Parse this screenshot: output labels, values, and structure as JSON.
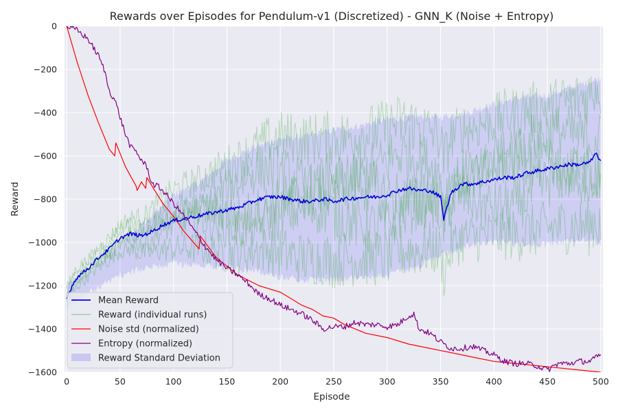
{
  "chart_data": {
    "type": "line",
    "title": "Rewards over Episodes for Pendulum-v1 (Discretized) - GNN_K (Noise + Entropy)",
    "xlabel": "Episode",
    "ylabel": "Reward",
    "xlim": [
      -2,
      502
    ],
    "ylim": [
      -1600,
      0
    ],
    "xticks": [
      0,
      50,
      100,
      150,
      200,
      250,
      300,
      350,
      400,
      450,
      500
    ],
    "xtick_labels": [
      "0",
      "50",
      "100",
      "150",
      "200",
      "250",
      "300",
      "350",
      "400",
      "450",
      "500"
    ],
    "yticks": [
      0,
      -200,
      -400,
      -600,
      -800,
      -1000,
      -1200,
      -1400,
      -1600
    ],
    "ytick_labels": [
      "0",
      "−200",
      "−400",
      "−600",
      "−800",
      "−1000",
      "−1200",
      "−1400",
      "−1600"
    ],
    "grid": true,
    "legend_position": "bottom-left",
    "colors": {
      "background": "#eaeaf2",
      "grid": "#ffffff",
      "mean": "#0000dd",
      "runs": "#2ca02c",
      "noise": "#ff0000",
      "entropy": "#800080",
      "std_band": "#6f6ff5"
    },
    "legend": [
      {
        "label": "Mean Reward",
        "kind": "line",
        "color": "#0000dd"
      },
      {
        "label": "Reward (individual runs)",
        "kind": "line",
        "color": "#8fc98f"
      },
      {
        "label": "Noise std (normalized)",
        "kind": "line",
        "color": "#ff0000"
      },
      {
        "label": "Entropy (normalized)",
        "kind": "line",
        "color": "#800080"
      },
      {
        "label": "Reward Standard Deviation",
        "kind": "patch",
        "color": "#c8c8f0"
      }
    ],
    "series": [
      {
        "name": "Mean Reward",
        "x": [
          0,
          5,
          10,
          20,
          30,
          40,
          50,
          60,
          70,
          80,
          90,
          100,
          110,
          120,
          130,
          140,
          150,
          160,
          170,
          180,
          190,
          200,
          210,
          220,
          230,
          240,
          250,
          260,
          270,
          280,
          290,
          300,
          310,
          320,
          330,
          340,
          350,
          353,
          360,
          370,
          380,
          390,
          400,
          410,
          420,
          430,
          440,
          450,
          460,
          470,
          480,
          490,
          495,
          500
        ],
        "y": [
          -1260,
          -1200,
          -1160,
          -1120,
          -1070,
          -1030,
          -980,
          -960,
          -970,
          -950,
          -920,
          -900,
          -890,
          -880,
          -870,
          -860,
          -850,
          -840,
          -820,
          -800,
          -790,
          -790,
          -800,
          -810,
          -810,
          -800,
          -810,
          -800,
          -795,
          -790,
          -790,
          -780,
          -760,
          -750,
          -760,
          -760,
          -790,
          -890,
          -770,
          -730,
          -730,
          -720,
          -710,
          -700,
          -700,
          -680,
          -670,
          -660,
          -650,
          -640,
          -640,
          -630,
          -590,
          -620
        ]
      },
      {
        "name": "Reward Standard Deviation",
        "x": [
          0,
          25,
          50,
          75,
          100,
          125,
          150,
          175,
          200,
          225,
          250,
          275,
          300,
          325,
          350,
          375,
          400,
          425,
          450,
          475,
          500
        ],
        "lower": [
          -1300,
          -1220,
          -1150,
          -1120,
          -1100,
          -1100,
          -1120,
          -1130,
          -1160,
          -1170,
          -1170,
          -1160,
          -1150,
          -1120,
          -1060,
          -1020,
          -1000,
          -1010,
          -1010,
          -990,
          -1000
        ],
        "upper": [
          -1200,
          -1120,
          -1000,
          -900,
          -780,
          -720,
          -620,
          -560,
          -520,
          -510,
          -480,
          -460,
          -430,
          -420,
          -420,
          -400,
          -360,
          -330,
          -320,
          -280,
          -240
        ]
      },
      {
        "name": "Noise std (normalized)",
        "x": [
          0,
          10,
          20,
          30,
          40,
          45,
          46,
          55,
          65,
          66,
          70,
          74,
          75,
          85,
          90,
          100,
          110,
          124,
          125,
          140,
          160,
          180,
          200,
          210,
          220,
          230,
          240,
          250,
          260,
          280,
          300,
          320,
          340,
          360,
          380,
          400,
          420,
          440,
          460,
          480,
          500
        ],
        "y": [
          0,
          -170,
          -320,
          -450,
          -570,
          -600,
          -540,
          -650,
          -740,
          -760,
          -720,
          -750,
          -700,
          -780,
          -820,
          -880,
          -950,
          -1030,
          -970,
          -1070,
          -1150,
          -1200,
          -1230,
          -1260,
          -1290,
          -1310,
          -1340,
          -1350,
          -1380,
          -1420,
          -1440,
          -1470,
          -1490,
          -1510,
          -1530,
          -1550,
          -1560,
          -1570,
          -1580,
          -1590,
          -1600
        ]
      },
      {
        "name": "Entropy (normalized)",
        "x": [
          0,
          5,
          10,
          20,
          25,
          30,
          35,
          40,
          45,
          50,
          55,
          60,
          65,
          70,
          75,
          80,
          85,
          90,
          100,
          110,
          120,
          130,
          140,
          150,
          160,
          170,
          180,
          190,
          200,
          210,
          220,
          230,
          240,
          250,
          260,
          270,
          280,
          290,
          300,
          310,
          320,
          325,
          330,
          340,
          350,
          360,
          370,
          380,
          390,
          400,
          410,
          420,
          430,
          440,
          450,
          460,
          470,
          480,
          490,
          500
        ],
        "y": [
          0,
          -10,
          -20,
          -60,
          -100,
          -140,
          -200,
          -300,
          -340,
          -420,
          -500,
          -560,
          -580,
          -620,
          -650,
          -730,
          -740,
          -760,
          -820,
          -880,
          -950,
          -1020,
          -1080,
          -1120,
          -1150,
          -1190,
          -1240,
          -1260,
          -1290,
          -1310,
          -1330,
          -1360,
          -1400,
          -1390,
          -1390,
          -1370,
          -1380,
          -1380,
          -1390,
          -1380,
          -1340,
          -1330,
          -1400,
          -1420,
          -1460,
          -1490,
          -1490,
          -1480,
          -1500,
          -1520,
          -1550,
          -1560,
          -1560,
          -1570,
          -1590,
          -1560,
          -1560,
          -1550,
          -1550,
          -1520
        ]
      }
    ]
  }
}
